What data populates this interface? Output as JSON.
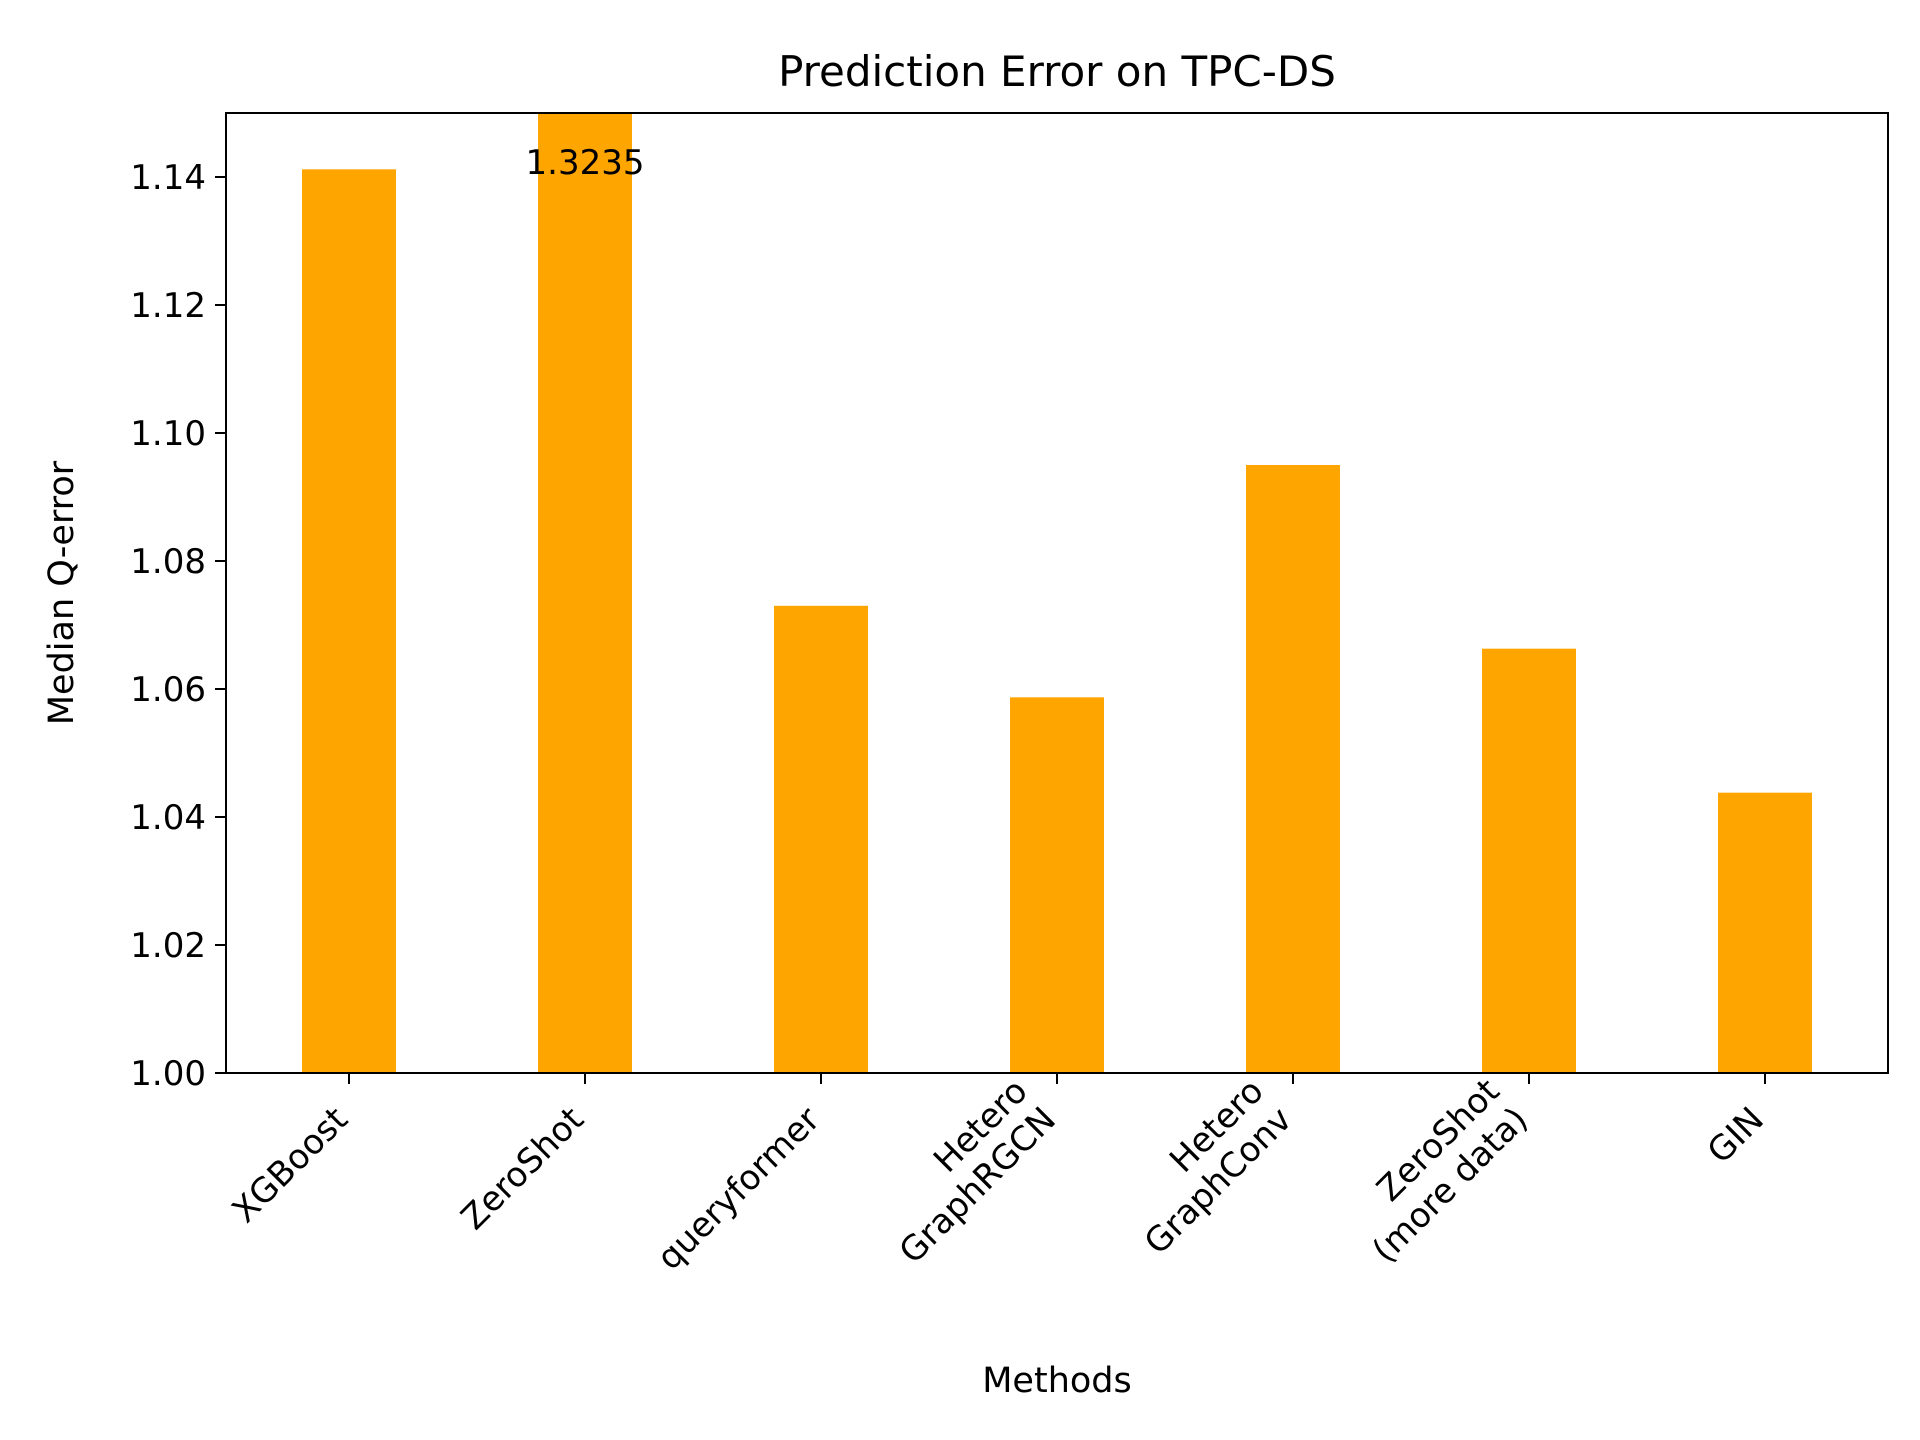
{
  "chart_data": {
    "type": "bar",
    "title": "Prediction Error on TPC-DS",
    "xlabel": "Methods",
    "ylabel": "Median Q-error",
    "categories": [
      [
        "XGBoost"
      ],
      [
        "ZeroShot"
      ],
      [
        "queryformer"
      ],
      [
        "Hetero",
        "GraphRGCN"
      ],
      [
        "Hetero",
        "GraphConv"
      ],
      [
        "ZeroShot",
        "(more data)"
      ],
      [
        "GIN"
      ]
    ],
    "values": [
      1.1412,
      1.3235,
      1.073,
      1.0587,
      1.095,
      1.0663,
      1.0438
    ],
    "data_labels": [
      "",
      "1.3235",
      "",
      "",
      "",
      "",
      ""
    ],
    "ylim": [
      1.0,
      1.15
    ],
    "yticks": [
      "1.00",
      "1.02",
      "1.04",
      "1.06",
      "1.08",
      "1.10",
      "1.12",
      "1.14"
    ],
    "bar_color": "#ffa500",
    "grid": false,
    "legend": "none"
  }
}
